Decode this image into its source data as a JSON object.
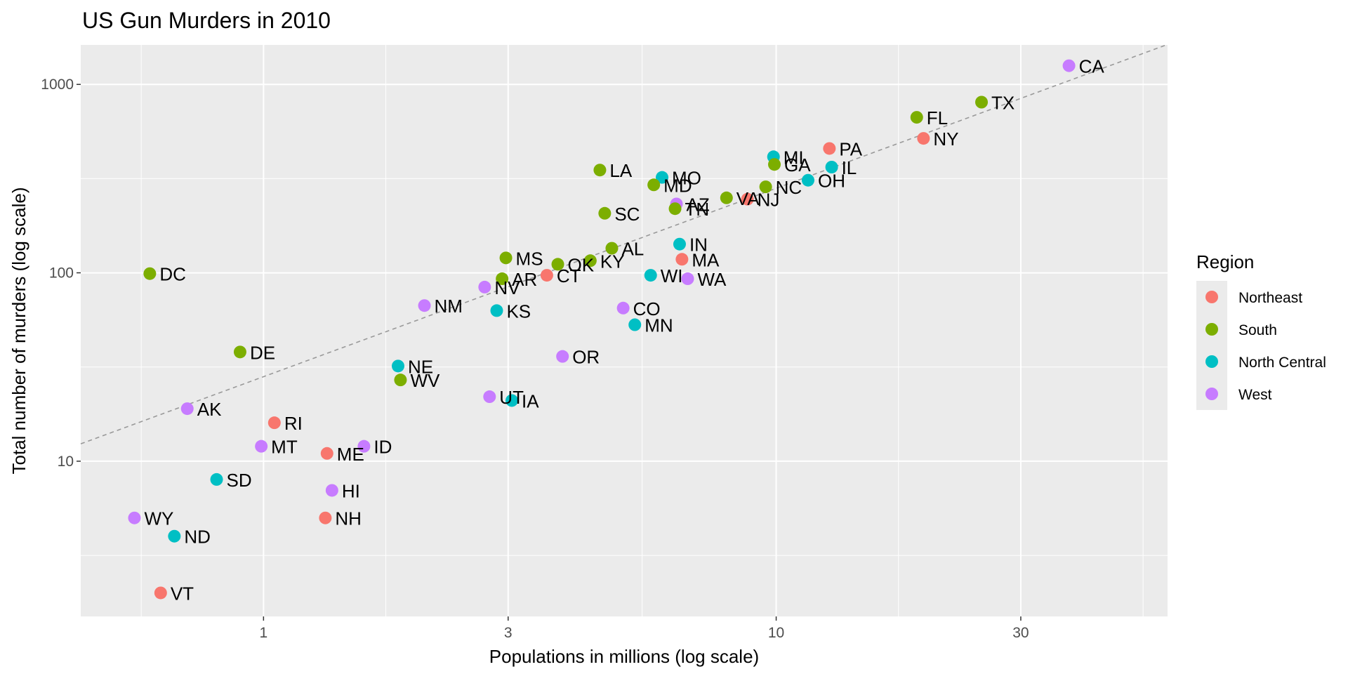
{
  "chart_data": {
    "type": "scatter",
    "title": "US Gun Murders in 2010",
    "xlabel": "Populations in millions (log scale)",
    "ylabel": "Total number of murders (log scale)",
    "x_scale": "log10",
    "y_scale": "log10",
    "xlim": [
      0.44,
      58
    ],
    "ylim": [
      1.5,
      1620
    ],
    "x_ticks": [
      1,
      3,
      10,
      30
    ],
    "x_tick_labels": [
      "1",
      "3",
      "10",
      "30"
    ],
    "y_ticks": [
      10,
      100,
      1000
    ],
    "y_tick_labels": [
      "10",
      "100",
      "1000"
    ],
    "grid": true,
    "reference_line": {
      "style": "dashed",
      "color": "#999999",
      "intercept_murders_per_million": 28.1
    },
    "legend": {
      "title": "Region",
      "position": "right",
      "entries": [
        {
          "name": "Northeast",
          "color": "#F8766D"
        },
        {
          "name": "South",
          "color": "#7CAE00"
        },
        {
          "name": "North Central",
          "color": "#00BFC4"
        },
        {
          "name": "West",
          "color": "#C77CFF"
        }
      ]
    },
    "points": [
      {
        "label": "CA",
        "x": 37.25,
        "y": 1257,
        "region": "West"
      },
      {
        "label": "TX",
        "x": 25.15,
        "y": 805,
        "region": "South"
      },
      {
        "label": "FL",
        "x": 18.8,
        "y": 669,
        "region": "South"
      },
      {
        "label": "NY",
        "x": 19.38,
        "y": 517,
        "region": "Northeast"
      },
      {
        "label": "PA",
        "x": 12.7,
        "y": 457,
        "region": "Northeast"
      },
      {
        "label": "MI",
        "x": 9.88,
        "y": 413,
        "region": "North Central"
      },
      {
        "label": "GA",
        "x": 9.92,
        "y": 376,
        "region": "South"
      },
      {
        "label": "IL",
        "x": 12.83,
        "y": 364,
        "region": "North Central"
      },
      {
        "label": "OH",
        "x": 11.54,
        "y": 310,
        "region": "North Central"
      },
      {
        "label": "NC",
        "x": 9.54,
        "y": 286,
        "region": "South"
      },
      {
        "label": "NJ",
        "x": 8.79,
        "y": 246,
        "region": "Northeast"
      },
      {
        "label": "VA",
        "x": 8.0,
        "y": 250,
        "region": "South"
      },
      {
        "label": "LA",
        "x": 4.53,
        "y": 351,
        "region": "South"
      },
      {
        "label": "MO",
        "x": 5.99,
        "y": 321,
        "region": "North Central"
      },
      {
        "label": "MD",
        "x": 5.77,
        "y": 293,
        "region": "South"
      },
      {
        "label": "AZ",
        "x": 6.39,
        "y": 232,
        "region": "West"
      },
      {
        "label": "TN",
        "x": 6.35,
        "y": 219,
        "region": "South"
      },
      {
        "label": "SC",
        "x": 4.63,
        "y": 207,
        "region": "South"
      },
      {
        "label": "IN",
        "x": 6.48,
        "y": 142,
        "region": "North Central"
      },
      {
        "label": "MA",
        "x": 6.55,
        "y": 118,
        "region": "Northeast"
      },
      {
        "label": "AL",
        "x": 4.78,
        "y": 135,
        "region": "South"
      },
      {
        "label": "KY",
        "x": 4.34,
        "y": 116,
        "region": "South"
      },
      {
        "label": "OK",
        "x": 3.75,
        "y": 111,
        "region": "South"
      },
      {
        "label": "MS",
        "x": 2.97,
        "y": 120,
        "region": "South"
      },
      {
        "label": "CT",
        "x": 3.57,
        "y": 97,
        "region": "Northeast"
      },
      {
        "label": "AR",
        "x": 2.92,
        "y": 93,
        "region": "South"
      },
      {
        "label": "WI",
        "x": 5.69,
        "y": 97,
        "region": "North Central"
      },
      {
        "label": "WA",
        "x": 6.72,
        "y": 93,
        "region": "West"
      },
      {
        "label": "NV",
        "x": 2.7,
        "y": 84,
        "region": "West"
      },
      {
        "label": "DC",
        "x": 0.6,
        "y": 99,
        "region": "South"
      },
      {
        "label": "NM",
        "x": 2.06,
        "y": 67,
        "region": "West"
      },
      {
        "label": "CO",
        "x": 5.03,
        "y": 65,
        "region": "West"
      },
      {
        "label": "KS",
        "x": 2.85,
        "y": 63,
        "region": "North Central"
      },
      {
        "label": "MN",
        "x": 5.3,
        "y": 53,
        "region": "North Central"
      },
      {
        "label": "DE",
        "x": 0.9,
        "y": 38,
        "region": "South"
      },
      {
        "label": "OR",
        "x": 3.83,
        "y": 36,
        "region": "West"
      },
      {
        "label": "NE",
        "x": 1.83,
        "y": 32,
        "region": "North Central"
      },
      {
        "label": "WV",
        "x": 1.85,
        "y": 27,
        "region": "South"
      },
      {
        "label": "UT",
        "x": 2.76,
        "y": 22,
        "region": "West"
      },
      {
        "label": "IA",
        "x": 3.05,
        "y": 21,
        "region": "North Central"
      },
      {
        "label": "AK",
        "x": 0.71,
        "y": 19,
        "region": "West"
      },
      {
        "label": "RI",
        "x": 1.05,
        "y": 16,
        "region": "Northeast"
      },
      {
        "label": "MT",
        "x": 0.99,
        "y": 12,
        "region": "West"
      },
      {
        "label": "ID",
        "x": 1.57,
        "y": 12,
        "region": "West"
      },
      {
        "label": "ME",
        "x": 1.33,
        "y": 11,
        "region": "Northeast"
      },
      {
        "label": "SD",
        "x": 0.81,
        "y": 8,
        "region": "North Central"
      },
      {
        "label": "HI",
        "x": 1.36,
        "y": 7,
        "region": "West"
      },
      {
        "label": "NH",
        "x": 1.32,
        "y": 5,
        "region": "Northeast"
      },
      {
        "label": "WY",
        "x": 0.56,
        "y": 5,
        "region": "West"
      },
      {
        "label": "ND",
        "x": 0.67,
        "y": 4,
        "region": "North Central"
      },
      {
        "label": "VT",
        "x": 0.63,
        "y": 2,
        "region": "Northeast"
      }
    ]
  }
}
